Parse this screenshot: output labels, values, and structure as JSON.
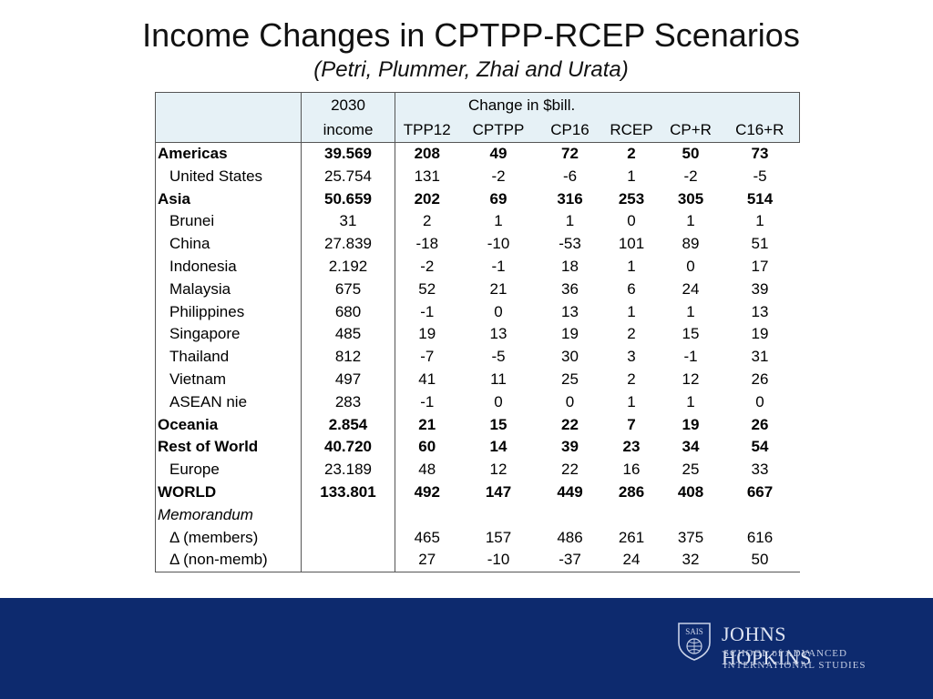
{
  "title": "Income Changes in CPTPP-RCEP Scenarios",
  "subtitle": "(Petri, Plummer, Zhai and Urata)",
  "table": {
    "header_income_top": "2030",
    "header_income_bottom": "income",
    "header_group": "Change in $bill.",
    "columns": [
      "TPP12",
      "CPTPP",
      "CP16",
      "RCEP",
      "CP+R",
      "C16+R"
    ],
    "rows": [
      {
        "label": "Americas",
        "bold": true,
        "indent": false,
        "values": [
          "39.569",
          "208",
          "49",
          "72",
          "2",
          "50",
          "73"
        ]
      },
      {
        "label": "United States",
        "bold": false,
        "indent": true,
        "values": [
          "25.754",
          "131",
          "-2",
          "-6",
          "1",
          "-2",
          "-5"
        ]
      },
      {
        "label": "Asia",
        "bold": true,
        "indent": false,
        "values": [
          "50.659",
          "202",
          "69",
          "316",
          "253",
          "305",
          "514"
        ]
      },
      {
        "label": "Brunei",
        "bold": false,
        "indent": true,
        "values": [
          "31",
          "2",
          "1",
          "1",
          "0",
          "1",
          "1"
        ]
      },
      {
        "label": "China",
        "bold": false,
        "indent": true,
        "values": [
          "27.839",
          "-18",
          "-10",
          "-53",
          "101",
          "89",
          "51"
        ]
      },
      {
        "label": "Indonesia",
        "bold": false,
        "indent": true,
        "values": [
          "2.192",
          "-2",
          "-1",
          "18",
          "1",
          "0",
          "17"
        ]
      },
      {
        "label": "Malaysia",
        "bold": false,
        "indent": true,
        "values": [
          "675",
          "52",
          "21",
          "36",
          "6",
          "24",
          "39"
        ]
      },
      {
        "label": "Philippines",
        "bold": false,
        "indent": true,
        "values": [
          "680",
          "-1",
          "0",
          "13",
          "1",
          "1",
          "13"
        ]
      },
      {
        "label": "Singapore",
        "bold": false,
        "indent": true,
        "values": [
          "485",
          "19",
          "13",
          "19",
          "2",
          "15",
          "19"
        ]
      },
      {
        "label": "Thailand",
        "bold": false,
        "indent": true,
        "values": [
          "812",
          "-7",
          "-5",
          "30",
          "3",
          "-1",
          "31"
        ]
      },
      {
        "label": "Vietnam",
        "bold": false,
        "indent": true,
        "values": [
          "497",
          "41",
          "11",
          "25",
          "2",
          "12",
          "26"
        ]
      },
      {
        "label": "ASEAN nie",
        "bold": false,
        "indent": true,
        "values": [
          "283",
          "-1",
          "0",
          "0",
          "1",
          "1",
          "0"
        ]
      },
      {
        "label": "Oceania",
        "bold": true,
        "indent": false,
        "values": [
          "2.854",
          "21",
          "15",
          "22",
          "7",
          "19",
          "26"
        ]
      },
      {
        "label": "Rest of World",
        "bold": true,
        "indent": false,
        "values": [
          "40.720",
          "60",
          "14",
          "39",
          "23",
          "34",
          "54"
        ]
      },
      {
        "label": "Europe",
        "bold": false,
        "indent": true,
        "values": [
          "23.189",
          "48",
          "12",
          "22",
          "16",
          "25",
          "33"
        ]
      },
      {
        "label": "WORLD",
        "bold": true,
        "indent": false,
        "values": [
          "133.801",
          "492",
          "147",
          "449",
          "286",
          "408",
          "667"
        ]
      },
      {
        "label": "Memorandum",
        "bold": false,
        "indent": false,
        "italic": true,
        "values": [
          "",
          "",
          "",
          "",
          "",
          "",
          ""
        ]
      },
      {
        "label": "Δ (members)",
        "bold": false,
        "indent": true,
        "values": [
          "",
          "465",
          "157",
          "486",
          "261",
          "375",
          "616"
        ]
      },
      {
        "label": "Δ (non-memb)",
        "bold": false,
        "indent": true,
        "values": [
          "",
          "27",
          "-10",
          "-37",
          "24",
          "32",
          "50"
        ]
      }
    ]
  },
  "logo": {
    "seal_text": "SAIS",
    "name": "JOHNS HOPKINS",
    "school_line1": "SCHOOL of ADVANCED",
    "school_line2": "INTERNATIONAL STUDIES"
  },
  "colors": {
    "footer": "#0d2a6e",
    "header_fill": "#e6f1f6"
  }
}
